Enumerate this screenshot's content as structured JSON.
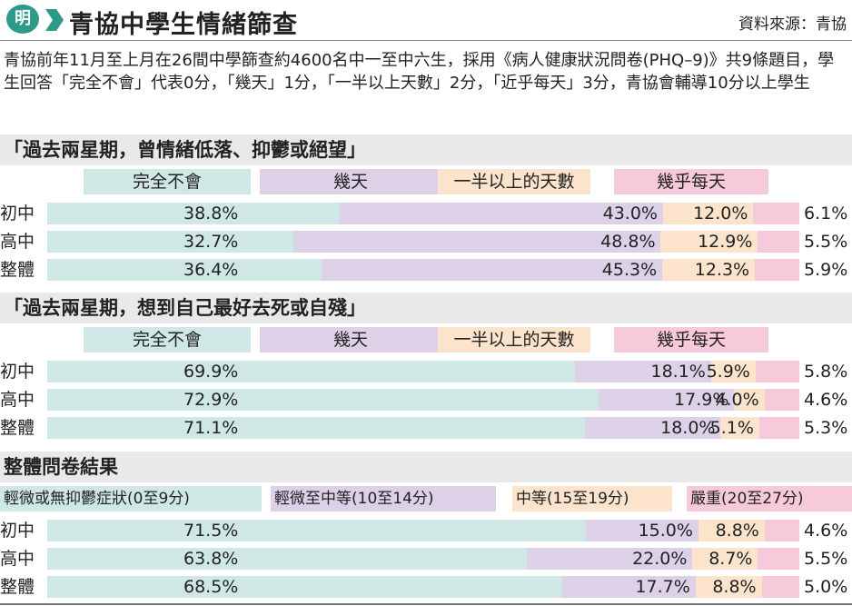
{
  "header": {
    "logo_text": "明",
    "title": "青協中學生情緒篩查",
    "source": "資料來源：青協"
  },
  "description": "青協前年11月至上月在26間中學篩查約4600名中一至中六生，採用《病人健康狀況問卷(PHQ–9)》共9條題目，學生回答「完全不會」代表0分，「幾天」1分，「一半以上天數」2分，「近乎每天」3分，青協會輔導10分以上學生",
  "colors": {
    "s1": "#cfe8e6",
    "s2": "#dcd1e7",
    "s3": "#fbe4cb",
    "s4": "#f7cadb",
    "band": "#e9e9e9",
    "track": "#efefef"
  },
  "chart_data": [
    {
      "type": "bar",
      "title": "「過去兩星期，曾情緒低落、抑鬱或絕望」",
      "series_names": [
        "完全不會",
        "幾天",
        "一半以上的天數",
        "幾乎每天"
      ],
      "categories": [
        "初中",
        "高中",
        "整體"
      ],
      "values": [
        [
          38.8,
          43.0,
          12.0,
          6.1
        ],
        [
          32.7,
          48.8,
          12.9,
          5.5
        ],
        [
          36.4,
          45.3,
          12.3,
          5.9
        ]
      ],
      "labels": [
        [
          "38.8%",
          "43.0%",
          "12.0%",
          "6.1%"
        ],
        [
          "32.7%",
          "48.8%",
          "12.9%",
          "5.5%"
        ],
        [
          "36.4%",
          "45.3%",
          "12.3%",
          "5.9%"
        ]
      ]
    },
    {
      "type": "bar",
      "title": "「過去兩星期，想到自己最好去死或自殘」",
      "series_names": [
        "完全不會",
        "幾天",
        "一半以上的天數",
        "幾乎每天"
      ],
      "categories": [
        "初中",
        "高中",
        "整體"
      ],
      "values": [
        [
          69.9,
          18.1,
          5.9,
          5.8
        ],
        [
          72.9,
          17.9,
          4.0,
          4.6
        ],
        [
          71.1,
          18.0,
          5.1,
          5.3
        ]
      ],
      "labels": [
        [
          "69.9%",
          "18.1%",
          "5.9%",
          "5.8%"
        ],
        [
          "72.9%",
          "17.9%",
          "4.0%",
          "4.6%"
        ],
        [
          "71.1%",
          "18.0%",
          "5.1%",
          "5.3%"
        ]
      ]
    },
    {
      "type": "bar",
      "title": "整體問卷結果",
      "series_names": [
        "輕微或無抑鬱症狀(0至9分)",
        "輕微至中等(10至14分)",
        "中等(15至19分)",
        "嚴重(20至27分)"
      ],
      "categories": [
        "初中",
        "高中",
        "整體"
      ],
      "values": [
        [
          71.5,
          15.0,
          8.8,
          4.6
        ],
        [
          63.8,
          22.0,
          8.7,
          5.5
        ],
        [
          68.5,
          17.7,
          8.8,
          5.0
        ]
      ],
      "labels": [
        [
          "71.5%",
          "15.0%",
          "8.8%",
          "4.6%"
        ],
        [
          "63.8%",
          "22.0%",
          "8.7%",
          "5.5%"
        ],
        [
          "68.5%",
          "17.7%",
          "8.8%",
          "5.0%"
        ]
      ]
    }
  ]
}
